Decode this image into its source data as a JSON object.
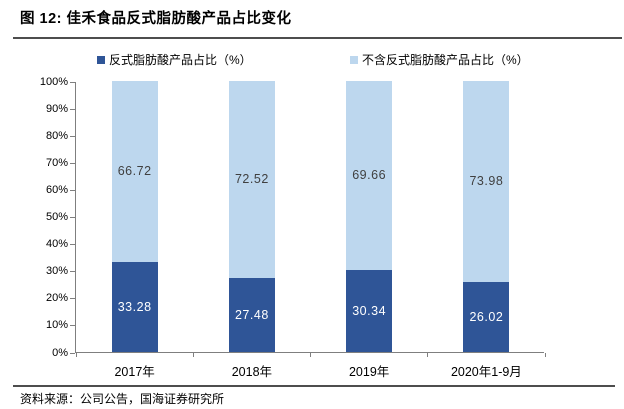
{
  "figure": {
    "title": "图 12:  佳禾食品反式脂肪酸产品占比变化",
    "source": "资料来源：公司公告，国海证券研究所"
  },
  "colors": {
    "series_dark_blue": "#2F5597",
    "series_light_blue": "#BDD7EE",
    "axis": "#7f7f7f",
    "rule": "#4d4d4d",
    "label_on_light": "#404040",
    "label_on_dark": "#FFFFFF"
  },
  "chart_data": {
    "type": "bar",
    "stacked": true,
    "title": "图 12:  佳禾食品反式脂肪酸产品占比变化",
    "categories": [
      "2017年",
      "2018年",
      "2019年",
      "2020年1-9月"
    ],
    "series": [
      {
        "name": "反式脂肪酸产品占比（%）",
        "color": "#2F5597",
        "label_color": "#FFFFFF",
        "values": [
          33.28,
          27.48,
          30.34,
          26.02
        ]
      },
      {
        "name": "不含反式脂肪酸产品占比（%）",
        "color": "#BDD7EE",
        "label_color": "#404040",
        "values": [
          66.72,
          72.52,
          69.66,
          73.98
        ]
      }
    ],
    "ylim": [
      0,
      100
    ],
    "y_ticks": [
      "0%",
      "10%",
      "20%",
      "30%",
      "40%",
      "50%",
      "60%",
      "70%",
      "80%",
      "90%",
      "100%"
    ],
    "grid": false,
    "legend_position": "top",
    "legend": [
      {
        "label": "反式脂肪酸产品占比（%）",
        "color": "#2F5597"
      },
      {
        "label": "不含反式脂肪酸产品占比（%）",
        "color": "#BDD7EE"
      }
    ]
  }
}
